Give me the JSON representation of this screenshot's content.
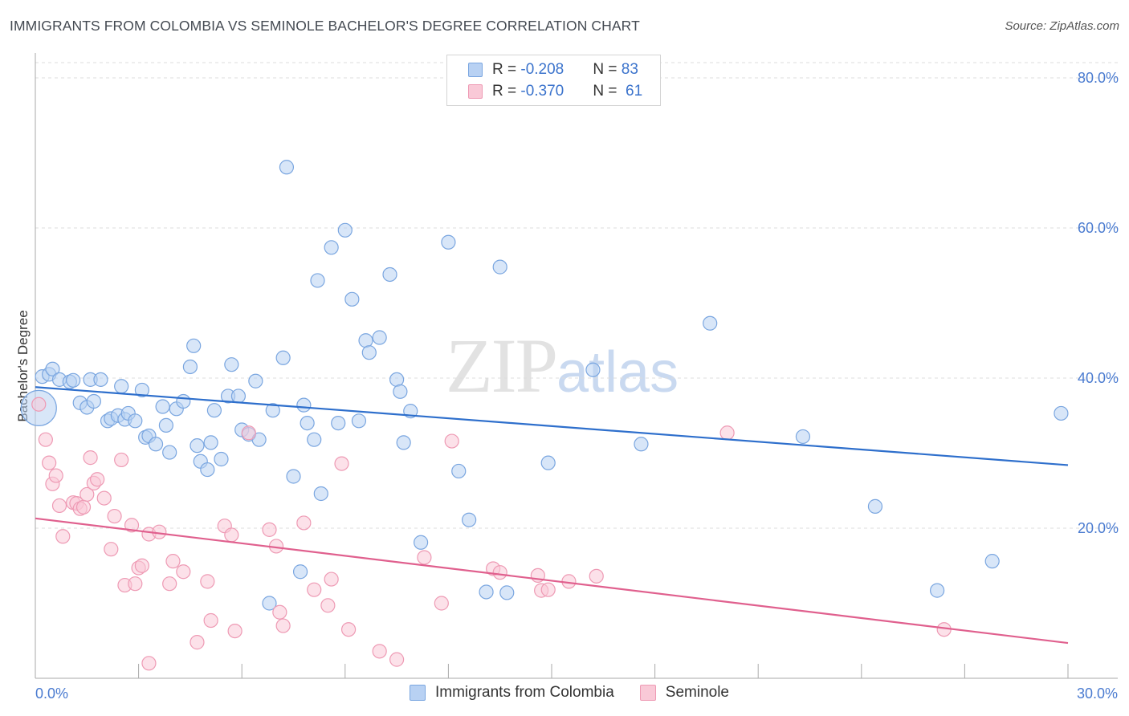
{
  "title": "IMMIGRANTS FROM COLOMBIA VS SEMINOLE BACHELOR'S DEGREE CORRELATION CHART",
  "source": "Source: ZipAtlas.com",
  "watermark": {
    "zip": "ZIP",
    "atlas": "atlas"
  },
  "legend": {
    "r_label": "R = ",
    "n_label": "N = ",
    "rows": [
      {
        "r": "-0.208",
        "n": "83"
      },
      {
        "r": "-0.370",
        "n": " 61"
      }
    ]
  },
  "colors": {
    "blue_fill": "#b8d1f3",
    "blue_stroke": "#7aa6e0",
    "blue_line": "#2e6fcc",
    "pink_fill": "#f9c9d7",
    "pink_stroke": "#ee9ab4",
    "pink_line": "#e0608e",
    "grid": "#dcdcdc"
  },
  "chart_data": {
    "type": "scatter",
    "title": "IMMIGRANTS FROM COLOMBIA VS SEMINOLE BACHELOR'S DEGREE CORRELATION CHART",
    "xlabel": "",
    "ylabel": "Bachelor's Degree",
    "xlim": [
      0,
      30
    ],
    "ylim": [
      0,
      80
    ],
    "x_tick_labels": [
      "0.0%",
      "30.0%"
    ],
    "y_tick_labels": [
      "20.0%",
      "40.0%",
      "60.0%",
      "80.0%"
    ],
    "y_ticks": [
      20,
      40,
      60,
      80
    ],
    "grid": true,
    "legend": [
      "Immigrants from Colombia",
      "Seminole"
    ],
    "series": [
      {
        "name": "Immigrants from Colombia",
        "color": "blue",
        "trend": {
          "x": [
            0,
            30
          ],
          "y": [
            38.8,
            28.4
          ]
        },
        "points": [
          [
            0.1,
            36.0
          ],
          [
            0.2,
            40.2
          ],
          [
            0.4,
            40.5
          ],
          [
            0.5,
            41.2
          ],
          [
            0.7,
            39.8
          ],
          [
            1.0,
            39.5
          ],
          [
            1.1,
            39.7
          ],
          [
            1.3,
            36.7
          ],
          [
            1.5,
            36.1
          ],
          [
            1.6,
            39.8
          ],
          [
            1.7,
            36.9
          ],
          [
            1.9,
            39.8
          ],
          [
            2.1,
            34.3
          ],
          [
            2.2,
            34.6
          ],
          [
            2.4,
            35.0
          ],
          [
            2.5,
            38.9
          ],
          [
            2.6,
            34.5
          ],
          [
            2.7,
            35.3
          ],
          [
            2.9,
            34.3
          ],
          [
            3.1,
            38.4
          ],
          [
            3.2,
            32.1
          ],
          [
            3.3,
            32.3
          ],
          [
            3.5,
            31.2
          ],
          [
            3.7,
            36.2
          ],
          [
            3.8,
            33.7
          ],
          [
            3.9,
            30.1
          ],
          [
            4.1,
            35.9
          ],
          [
            4.3,
            36.9
          ],
          [
            4.5,
            41.5
          ],
          [
            4.6,
            44.3
          ],
          [
            4.7,
            31.0
          ],
          [
            4.8,
            28.9
          ],
          [
            5.0,
            27.8
          ],
          [
            5.1,
            31.4
          ],
          [
            5.2,
            35.7
          ],
          [
            5.4,
            29.2
          ],
          [
            5.6,
            37.6
          ],
          [
            5.7,
            41.8
          ],
          [
            5.9,
            37.6
          ],
          [
            6.0,
            33.1
          ],
          [
            6.2,
            32.5
          ],
          [
            6.4,
            39.6
          ],
          [
            6.5,
            31.8
          ],
          [
            6.8,
            10.0
          ],
          [
            6.9,
            35.7
          ],
          [
            7.2,
            42.7
          ],
          [
            7.3,
            68.1
          ],
          [
            7.5,
            26.9
          ],
          [
            7.7,
            14.2
          ],
          [
            7.8,
            36.4
          ],
          [
            7.9,
            34.0
          ],
          [
            8.1,
            31.8
          ],
          [
            8.2,
            53.0
          ],
          [
            8.3,
            24.6
          ],
          [
            8.6,
            57.4
          ],
          [
            8.8,
            34.0
          ],
          [
            9.0,
            59.7
          ],
          [
            9.2,
            50.5
          ],
          [
            9.4,
            34.3
          ],
          [
            9.6,
            45.0
          ],
          [
            9.7,
            43.4
          ],
          [
            10.0,
            45.4
          ],
          [
            10.3,
            53.8
          ],
          [
            10.5,
            39.8
          ],
          [
            10.6,
            38.2
          ],
          [
            10.7,
            31.4
          ],
          [
            10.9,
            35.6
          ],
          [
            11.2,
            18.1
          ],
          [
            12.0,
            58.1
          ],
          [
            12.3,
            27.6
          ],
          [
            12.6,
            21.1
          ],
          [
            13.1,
            11.5
          ],
          [
            13.5,
            54.8
          ],
          [
            13.7,
            11.4
          ],
          [
            14.9,
            28.7
          ],
          [
            16.2,
            41.1
          ],
          [
            17.6,
            31.2
          ],
          [
            19.6,
            47.3
          ],
          [
            22.3,
            32.2
          ],
          [
            24.4,
            22.9
          ],
          [
            26.2,
            11.7
          ],
          [
            27.8,
            15.6
          ],
          [
            29.8,
            35.3
          ]
        ]
      },
      {
        "name": "Seminole",
        "color": "pink",
        "trend": {
          "x": [
            0,
            30
          ],
          "y": [
            21.3,
            4.7
          ]
        },
        "points": [
          [
            0.1,
            36.5
          ],
          [
            0.3,
            31.8
          ],
          [
            0.4,
            28.7
          ],
          [
            0.5,
            25.9
          ],
          [
            0.6,
            27.0
          ],
          [
            0.7,
            23.0
          ],
          [
            0.8,
            18.9
          ],
          [
            1.1,
            23.4
          ],
          [
            1.2,
            23.3
          ],
          [
            1.3,
            22.6
          ],
          [
            1.4,
            22.8
          ],
          [
            1.5,
            24.5
          ],
          [
            1.6,
            29.4
          ],
          [
            1.7,
            26.0
          ],
          [
            1.8,
            26.5
          ],
          [
            2.0,
            24.0
          ],
          [
            2.2,
            17.2
          ],
          [
            2.3,
            21.6
          ],
          [
            2.5,
            29.1
          ],
          [
            2.6,
            12.4
          ],
          [
            2.8,
            20.4
          ],
          [
            2.9,
            12.6
          ],
          [
            3.0,
            14.7
          ],
          [
            3.1,
            15.0
          ],
          [
            3.3,
            19.2
          ],
          [
            3.6,
            19.5
          ],
          [
            3.3,
            2.0
          ],
          [
            3.9,
            12.6
          ],
          [
            4.0,
            15.6
          ],
          [
            4.3,
            14.2
          ],
          [
            4.7,
            4.8
          ],
          [
            5.0,
            12.9
          ],
          [
            5.1,
            7.7
          ],
          [
            5.5,
            20.3
          ],
          [
            5.7,
            19.1
          ],
          [
            5.8,
            6.3
          ],
          [
            6.2,
            32.7
          ],
          [
            6.8,
            19.8
          ],
          [
            7.0,
            17.6
          ],
          [
            7.1,
            8.8
          ],
          [
            7.2,
            7.0
          ],
          [
            7.8,
            20.7
          ],
          [
            8.1,
            11.8
          ],
          [
            8.5,
            9.7
          ],
          [
            8.6,
            13.2
          ],
          [
            8.9,
            28.6
          ],
          [
            9.1,
            6.5
          ],
          [
            10.0,
            3.6
          ],
          [
            10.5,
            2.5
          ],
          [
            11.3,
            16.1
          ],
          [
            11.8,
            10.0
          ],
          [
            12.1,
            31.6
          ],
          [
            13.3,
            14.6
          ],
          [
            13.5,
            14.1
          ],
          [
            14.6,
            13.7
          ],
          [
            14.7,
            11.7
          ],
          [
            14.9,
            11.8
          ],
          [
            15.5,
            12.9
          ],
          [
            16.3,
            13.6
          ],
          [
            20.1,
            32.7
          ],
          [
            26.4,
            6.5
          ]
        ]
      }
    ]
  }
}
